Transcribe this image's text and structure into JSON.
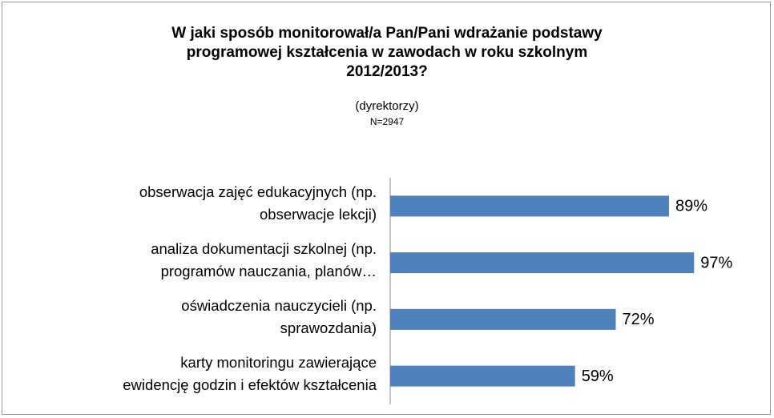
{
  "chart_data": {
    "type": "bar",
    "orientation": "horizontal",
    "title": "W jaki sposób monitorował/a Pan/Pani wdrażanie podstawy\nprogramowej kształcenia w zawodach w roku szkolnym\n2012/2013?",
    "subtitle": "(dyrektorzy)",
    "note": "N=2947",
    "categories": [
      "obserwacja zajęć edukacyjnych (np.\nobserwacje lekcji)",
      "analiza dokumentacji szkolnej (np.\nprogramów nauczania, planów…",
      "oświadczenia nauczycieli (np.\nsprawozdania)",
      "karty monitoringu zawierające\newidencję godzin i efektów kształcenia"
    ],
    "values": [
      89,
      97,
      72,
      59
    ],
    "value_labels": [
      "89%",
      "97%",
      "72%",
      "59%"
    ],
    "color": "#4f81bd",
    "xlim": [
      0,
      100
    ]
  }
}
